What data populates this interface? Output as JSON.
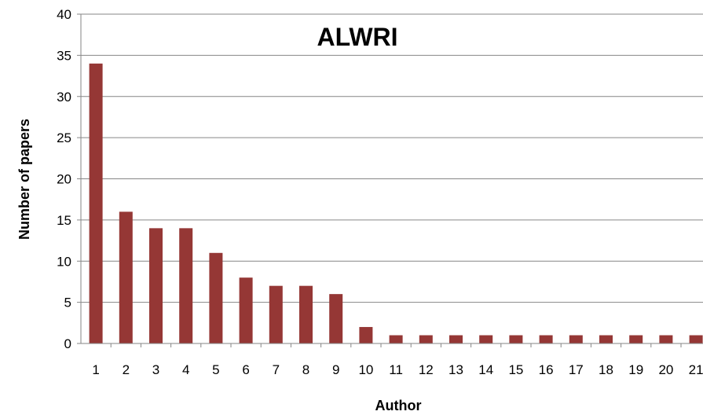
{
  "chart_data": {
    "type": "bar",
    "title": "ALWRI",
    "xlabel": "Author",
    "ylabel": "Number of papers",
    "categories": [
      "1",
      "2",
      "3",
      "4",
      "5",
      "6",
      "7",
      "8",
      "9",
      "10",
      "11",
      "12",
      "13",
      "14",
      "15",
      "16",
      "17",
      "18",
      "19",
      "20",
      "21"
    ],
    "values": [
      34,
      16,
      14,
      14,
      11,
      8,
      7,
      7,
      6,
      2,
      1,
      1,
      1,
      1,
      1,
      1,
      1,
      1,
      1,
      1,
      1
    ],
    "ylim": [
      0,
      40
    ],
    "yticks": [
      0,
      5,
      10,
      15,
      20,
      25,
      30,
      35,
      40
    ],
    "grid": true,
    "legend": "none",
    "bar_color": "#953735",
    "gridline_color": "#868686"
  }
}
